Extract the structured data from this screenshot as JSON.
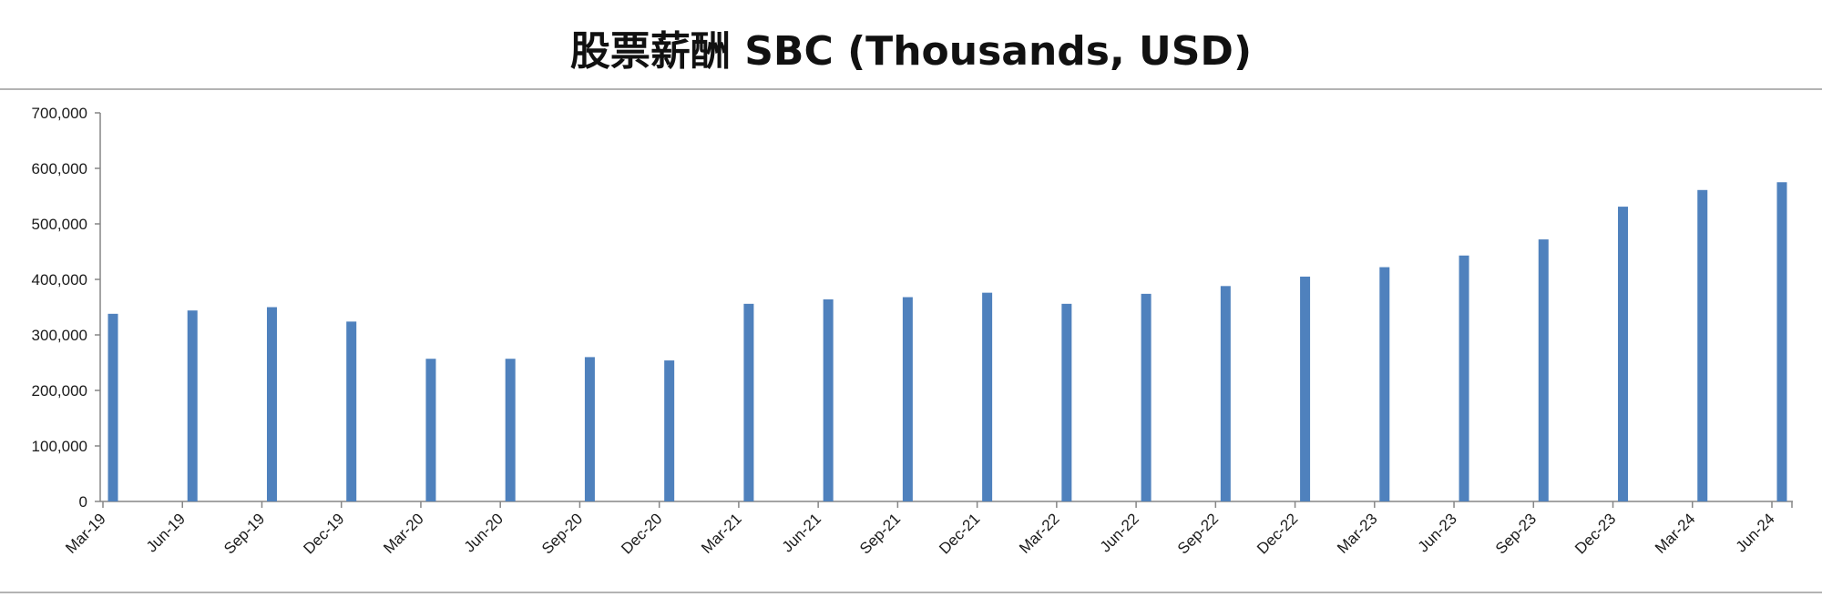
{
  "chart_data": {
    "type": "bar",
    "title": "股票薪酬 SBC (Thousands, USD)",
    "xlabel": "",
    "ylabel": "",
    "categories": [
      "Mar-19",
      "Jun-19",
      "Sep-19",
      "Dec-19",
      "Mar-20",
      "Jun-20",
      "Sep-20",
      "Dec-20",
      "Mar-21",
      "Jun-21",
      "Sep-21",
      "Dec-21",
      "Mar-22",
      "Jun-22",
      "Sep-22",
      "Dec-22",
      "Mar-23",
      "Jun-23",
      "Sep-23",
      "Dec-23",
      "Mar-24",
      "Jun-24"
    ],
    "values": [
      338000,
      344000,
      350000,
      324000,
      257000,
      257000,
      260000,
      254000,
      356000,
      364000,
      368000,
      376000,
      356000,
      374000,
      388000,
      405000,
      422000,
      443000,
      472000,
      531000,
      561000,
      575000
    ],
    "ylim": [
      0,
      700000
    ],
    "yticks": [
      "0",
      "100,000",
      "200,000",
      "300,000",
      "400,000",
      "500,000",
      "600,000",
      "700,000"
    ],
    "grid": false,
    "legend": "none",
    "bar_color": "#4f81bd",
    "axis_color": "#868686"
  }
}
